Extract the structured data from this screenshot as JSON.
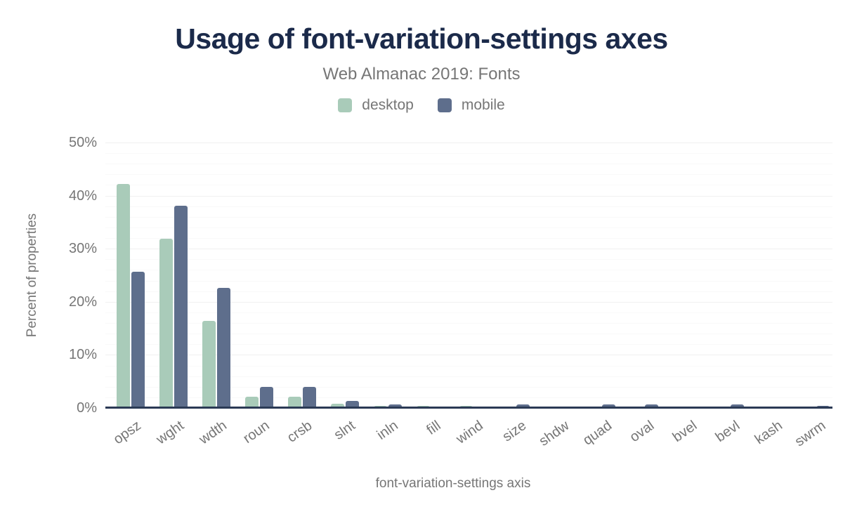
{
  "header": {
    "title": "Usage of font-variation-settings axes",
    "subtitle": "Web Almanac 2019: Fonts"
  },
  "chart_data": {
    "type": "bar",
    "title": "Usage of font-variation-settings axes",
    "subtitle": "Web Almanac 2019: Fonts",
    "categories": [
      "opsz",
      "wght",
      "wdth",
      "roun",
      "crsb",
      "slnt",
      "inln",
      "fill",
      "wind",
      "size",
      "shdw",
      "quad",
      "oval",
      "bvel",
      "bevl",
      "kash",
      "swrm"
    ],
    "series": [
      {
        "name": "desktop",
        "color": "#a9cbb9",
        "values": [
          42.2,
          31.9,
          16.4,
          2.1,
          2.1,
          0.8,
          0.4,
          0.4,
          0.4,
          0.3,
          0.3,
          0.3,
          0.3,
          0.3,
          0.3,
          0.3,
          0.1
        ]
      },
      {
        "name": "mobile",
        "color": "#5e6e8c",
        "values": [
          25.7,
          38.1,
          22.6,
          4.0,
          4.0,
          1.3,
          0.6,
          0.1,
          0.1,
          0.6,
          0.1,
          0.6,
          0.6,
          0.1,
          0.6,
          0.1,
          0.4
        ]
      }
    ],
    "xlabel": "font-variation-settings axis",
    "ylabel": "Percent of properties",
    "ylim": [
      0,
      50
    ],
    "ytick_step": 10,
    "ytick_minor_step": 2,
    "ytick_suffix": "%",
    "y_tick_labels": [
      "0%",
      "10%",
      "20%",
      "30%",
      "40%",
      "50%"
    ],
    "grid": "horizontal",
    "legend_position": "top",
    "x_label_rotation_deg": -35
  },
  "colors": {
    "background": "#ffffff",
    "title_text": "#1b2a4a",
    "muted_text": "#767676",
    "axis_line": "#2b3a55",
    "grid_major": "#f0f0f0",
    "grid_minor": "#f9f9f9"
  }
}
